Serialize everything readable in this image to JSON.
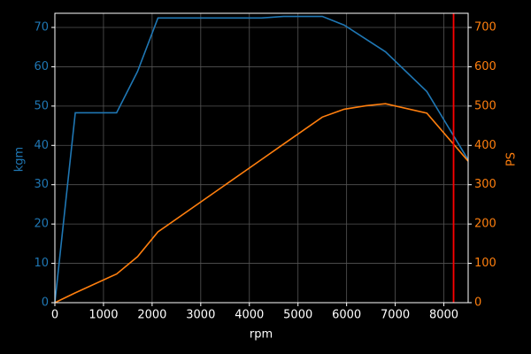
{
  "chart_data": {
    "type": "line",
    "xlabel": "rpm",
    "ylabel": "kgm",
    "y2label": "PS",
    "x": [
      0,
      420,
      1270,
      1700,
      2120,
      4250,
      4700,
      5500,
      5950,
      6400,
      6800,
      7650,
      8500
    ],
    "series": [
      {
        "color": "#1f77b4",
        "values": [
          0,
          48.3,
          48.3,
          58.8,
          72.4,
          72.4,
          72.8,
          72.8,
          70.6,
          67,
          63.8,
          53.7,
          36.3
        ]
      },
      {
        "color": "#ff7f0e",
        "axis": "y2",
        "values": [
          0,
          25,
          73,
          117,
          180,
          364,
          403,
          472,
          492,
          501,
          506,
          482,
          360
        ]
      }
    ],
    "vline": {
      "value": 8200,
      "color": "#ff0000"
    },
    "xlim": [
      0,
      8500
    ],
    "xticks": [
      0,
      1000,
      2000,
      3000,
      4000,
      5000,
      6000,
      7000,
      8000
    ],
    "ylim": [
      0,
      73.6
    ],
    "yticks": [
      0,
      10,
      20,
      30,
      40,
      50,
      60,
      70
    ],
    "y2lim": [
      0,
      736
    ],
    "y2ticks": [
      0,
      100,
      200,
      300,
      400,
      500,
      600,
      700
    ],
    "grid": true
  }
}
